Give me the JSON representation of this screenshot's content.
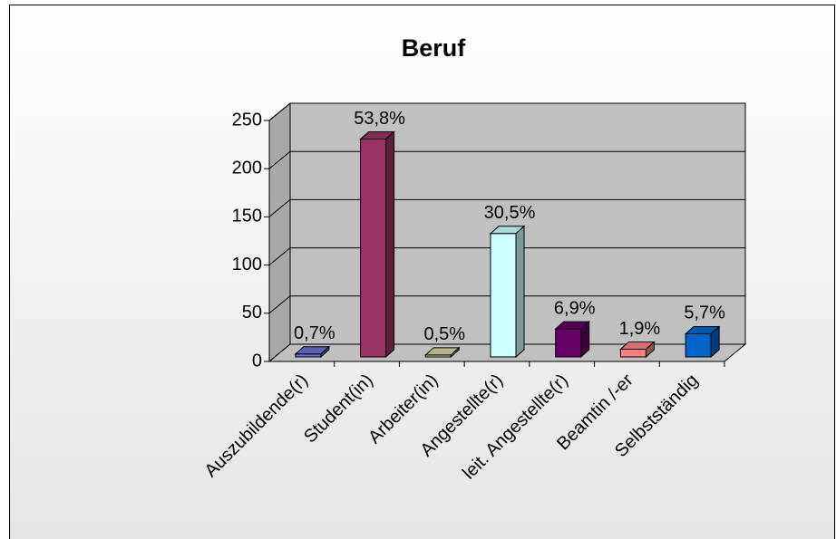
{
  "chart_data": {
    "type": "bar3d",
    "title": "Beruf",
    "categories": [
      "Auszubildende(r)",
      "Student(in)",
      "Arbeiter(in)",
      "Angestellte(r)",
      "leit. Angestellte(r)",
      "Beamtin /-er",
      "Selbstständig"
    ],
    "values": [
      3,
      226,
      2,
      128,
      29,
      8,
      24
    ],
    "value_labels": [
      "0,7%",
      "53,8%",
      "0,5%",
      "30,5%",
      "6,9%",
      "1,9%",
      "5,7%"
    ],
    "colors": [
      "#6f6fd6",
      "#993366",
      "#d9d2a6",
      "#ccffff",
      "#660066",
      "#ff8080",
      "#0066cc"
    ],
    "ylim": [
      0,
      250
    ],
    "yticks": [
      0,
      50,
      100,
      150,
      200,
      250
    ],
    "grid": true
  }
}
